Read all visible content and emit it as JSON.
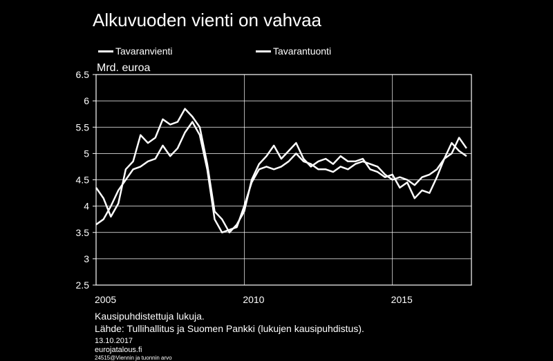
{
  "title": "Alkuvuoden vienti on vahvaa",
  "unit_label": "Mrd. euroa",
  "legend": [
    {
      "label": "Tavaranvienti"
    },
    {
      "label": "Tavarantuonti"
    }
  ],
  "notes": {
    "line1": "Kausipuhdistettuja lukuja.",
    "line2": "Lähde: Tullihallitus ja Suomen Pankki (lukujen kausipuhdistus).",
    "date": "13.10.2017",
    "site": "eurojatalous.fi",
    "code": "24515@Viennin ja tuonnin arvo"
  },
  "chart_data": {
    "type": "line",
    "x_ticks": [
      "2005",
      "2010",
      "2015"
    ],
    "y_ticks": [
      "2.5",
      "3",
      "3.5",
      "4",
      "4.5",
      "5",
      "5.5",
      "6",
      "6.5"
    ],
    "ylim": [
      2.5,
      6.5
    ],
    "grid": true,
    "series": [
      {
        "name": "Tavaranvienti",
        "color": "#ffffff",
        "points": [
          [
            "2005-01",
            4.35
          ],
          [
            "2005-04",
            4.15
          ],
          [
            "2005-07",
            3.8
          ],
          [
            "2005-10",
            4.05
          ],
          [
            "2006-01",
            4.7
          ],
          [
            "2006-04",
            4.85
          ],
          [
            "2006-07",
            5.35
          ],
          [
            "2006-10",
            5.2
          ],
          [
            "2007-01",
            5.3
          ],
          [
            "2007-04",
            5.65
          ],
          [
            "2007-07",
            5.55
          ],
          [
            "2007-10",
            5.6
          ],
          [
            "2008-01",
            5.85
          ],
          [
            "2008-04",
            5.7
          ],
          [
            "2008-07",
            5.5
          ],
          [
            "2008-10",
            4.8
          ],
          [
            "2009-01",
            3.9
          ],
          [
            "2009-04",
            3.75
          ],
          [
            "2009-07",
            3.5
          ],
          [
            "2009-10",
            3.65
          ],
          [
            "2010-01",
            3.9
          ],
          [
            "2010-04",
            4.5
          ],
          [
            "2010-07",
            4.8
          ],
          [
            "2010-10",
            4.95
          ],
          [
            "2011-01",
            5.15
          ],
          [
            "2011-04",
            4.9
          ],
          [
            "2011-07",
            5.05
          ],
          [
            "2011-10",
            5.2
          ],
          [
            "2012-01",
            4.9
          ],
          [
            "2012-04",
            4.75
          ],
          [
            "2012-07",
            4.85
          ],
          [
            "2012-10",
            4.9
          ],
          [
            "2013-01",
            4.8
          ],
          [
            "2013-04",
            4.95
          ],
          [
            "2013-07",
            4.85
          ],
          [
            "2013-10",
            4.85
          ],
          [
            "2014-01",
            4.9
          ],
          [
            "2014-04",
            4.7
          ],
          [
            "2014-07",
            4.65
          ],
          [
            "2014-10",
            4.55
          ],
          [
            "2015-01",
            4.6
          ],
          [
            "2015-04",
            4.35
          ],
          [
            "2015-07",
            4.45
          ],
          [
            "2015-10",
            4.15
          ],
          [
            "2016-01",
            4.3
          ],
          [
            "2016-04",
            4.25
          ],
          [
            "2016-07",
            4.55
          ],
          [
            "2016-10",
            4.9
          ],
          [
            "2017-01",
            5.2
          ],
          [
            "2017-04",
            5.05
          ],
          [
            "2017-07",
            4.95
          ]
        ]
      },
      {
        "name": "Tavarantuonti",
        "color": "#ffffff",
        "points": [
          [
            "2005-01",
            3.65
          ],
          [
            "2005-04",
            3.75
          ],
          [
            "2005-07",
            4.0
          ],
          [
            "2005-10",
            4.3
          ],
          [
            "2006-01",
            4.5
          ],
          [
            "2006-04",
            4.7
          ],
          [
            "2006-07",
            4.75
          ],
          [
            "2006-10",
            4.85
          ],
          [
            "2007-01",
            4.9
          ],
          [
            "2007-04",
            5.15
          ],
          [
            "2007-07",
            4.95
          ],
          [
            "2007-10",
            5.1
          ],
          [
            "2008-01",
            5.4
          ],
          [
            "2008-04",
            5.6
          ],
          [
            "2008-07",
            5.35
          ],
          [
            "2008-10",
            4.7
          ],
          [
            "2009-01",
            3.75
          ],
          [
            "2009-04",
            3.5
          ],
          [
            "2009-07",
            3.55
          ],
          [
            "2009-10",
            3.6
          ],
          [
            "2010-01",
            4.0
          ],
          [
            "2010-04",
            4.45
          ],
          [
            "2010-07",
            4.7
          ],
          [
            "2010-10",
            4.75
          ],
          [
            "2011-01",
            4.7
          ],
          [
            "2011-04",
            4.75
          ],
          [
            "2011-07",
            4.85
          ],
          [
            "2011-10",
            5.0
          ],
          [
            "2012-01",
            4.85
          ],
          [
            "2012-04",
            4.8
          ],
          [
            "2012-07",
            4.7
          ],
          [
            "2012-10",
            4.7
          ],
          [
            "2013-01",
            4.65
          ],
          [
            "2013-04",
            4.75
          ],
          [
            "2013-07",
            4.7
          ],
          [
            "2013-10",
            4.8
          ],
          [
            "2014-01",
            4.85
          ],
          [
            "2014-04",
            4.8
          ],
          [
            "2014-07",
            4.75
          ],
          [
            "2014-10",
            4.6
          ],
          [
            "2015-01",
            4.5
          ],
          [
            "2015-04",
            4.55
          ],
          [
            "2015-07",
            4.5
          ],
          [
            "2015-10",
            4.4
          ],
          [
            "2016-01",
            4.55
          ],
          [
            "2016-04",
            4.6
          ],
          [
            "2016-07",
            4.7
          ],
          [
            "2016-10",
            4.9
          ],
          [
            "2017-01",
            5.0
          ],
          [
            "2017-04",
            5.3
          ],
          [
            "2017-07",
            5.1
          ]
        ]
      }
    ]
  }
}
